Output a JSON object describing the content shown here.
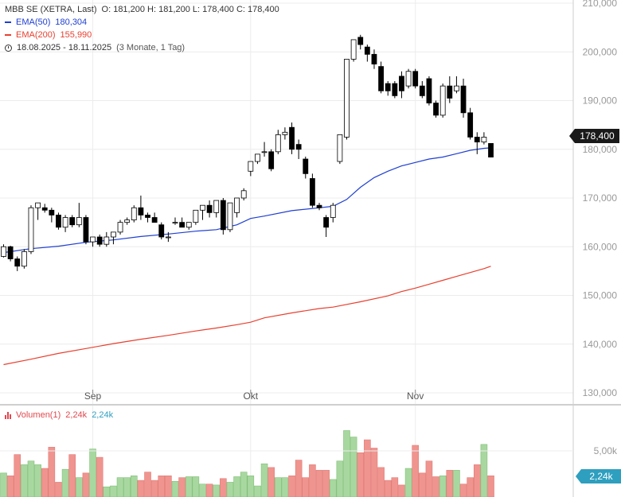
{
  "header": {
    "instrument": "MBB SE (XETRA, Last)",
    "ohlc": "O: 181,200  H: 181,200  L: 178,400  C: 178,400",
    "ema50_label": "EMA(50)",
    "ema50_value": "180,304",
    "ema200_label": "EMA(200)",
    "ema200_value": "155,990",
    "range": "18.08.2025 - 18.11.2025",
    "range_note": "(3 Monate, 1 Tag)"
  },
  "volume_header": {
    "label": "Volumen(1)",
    "value_red": "2,24k",
    "value_blue": "2,24k"
  },
  "price_tag": "178,400",
  "volume_tag": "2,24k",
  "colors": {
    "ema50": "#1f3fd1",
    "ema200": "#e8402f",
    "up_volume": "#a8d8a0",
    "down_volume": "#f0948f",
    "up_candle": "#ffffff",
    "down_candle": "#000000",
    "volume_accent": "#2e9fbf"
  },
  "chart_data": {
    "type": "candlestick",
    "y_axis": {
      "min": 130000,
      "max": 210000,
      "ticks": [
        "130,000",
        "140,000",
        "150,000",
        "160,000",
        "170,000",
        "180,000",
        "190,000",
        "200,000",
        "210,000"
      ]
    },
    "x_axis": {
      "ticks": [
        {
          "label": "Sep",
          "index": 13
        },
        {
          "label": "Okt",
          "index": 36
        },
        {
          "label": "Nov",
          "index": 60
        }
      ]
    },
    "candles": [
      [
        158.0,
        160.5,
        157.8,
        160.0
      ],
      [
        160.0,
        160.2,
        157.0,
        157.5
      ],
      [
        157.5,
        158.0,
        155.0,
        156.0
      ],
      [
        156.0,
        159.5,
        155.5,
        159.0
      ],
      [
        159.0,
        168.5,
        158.5,
        168.0
      ],
      [
        168.0,
        169.0,
        165.5,
        169.0
      ],
      [
        168.0,
        168.8,
        167.0,
        167.5
      ],
      [
        167.5,
        168.0,
        165.0,
        166.5
      ],
      [
        166.5,
        167.0,
        163.5,
        164.0
      ],
      [
        164.0,
        166.5,
        163.0,
        166.0
      ],
      [
        166.0,
        166.5,
        164.0,
        164.5
      ],
      [
        164.5,
        169.0,
        164.0,
        166.0
      ],
      [
        166.0,
        166.5,
        160.5,
        161.0
      ],
      [
        161.0,
        162.0,
        160.0,
        162.0
      ],
      [
        162.0,
        162.5,
        160.0,
        160.5
      ],
      [
        160.5,
        163.0,
        160.0,
        162.0
      ],
      [
        162.0,
        163.0,
        160.5,
        163.0
      ],
      [
        163.0,
        165.5,
        162.5,
        165.0
      ],
      [
        165.0,
        166.0,
        164.5,
        165.5
      ],
      [
        165.5,
        168.5,
        165.0,
        168.0
      ],
      [
        168.0,
        170.5,
        165.5,
        166.5
      ],
      [
        166.5,
        167.0,
        165.0,
        166.0
      ],
      [
        166.0,
        167.0,
        165.0,
        165.0
      ],
      [
        164.5,
        165.0,
        161.5,
        162.0
      ],
      [
        162.0,
        163.0,
        161.0,
        162.0
      ],
      [
        165.0,
        166.0,
        164.5,
        165.0
      ],
      [
        165.0,
        166.0,
        164.0,
        164.0
      ],
      [
        164.0,
        165.0,
        163.5,
        165.0
      ],
      [
        165.0,
        167.5,
        164.5,
        167.5
      ],
      [
        167.5,
        168.5,
        165.5,
        168.5
      ],
      [
        168.5,
        169.5,
        166.0,
        167.0
      ],
      [
        167.0,
        169.5,
        166.0,
        169.5
      ],
      [
        169.5,
        170.0,
        162.5,
        163.5
      ],
      [
        163.5,
        169.0,
        163.0,
        169.0
      ],
      [
        167.0,
        170.0,
        166.0,
        170.0
      ],
      [
        170.0,
        172.0,
        169.5,
        171.5
      ],
      [
        175.5,
        177.0,
        174.5,
        177.5
      ],
      [
        177.5,
        179.0,
        177.0,
        179.0
      ],
      [
        179.5,
        181.5,
        178.5,
        179.5
      ],
      [
        179.5,
        180.0,
        175.5,
        176.0
      ],
      [
        179.5,
        184.0,
        179.0,
        183.0
      ],
      [
        183.0,
        184.5,
        182.0,
        183.5
      ],
      [
        184.5,
        185.5,
        179.0,
        180.0
      ],
      [
        181.0,
        182.0,
        178.0,
        180.0
      ],
      [
        178.0,
        178.5,
        174.0,
        175.0
      ],
      [
        174.0,
        175.0,
        168.0,
        168.5
      ],
      [
        168.5,
        169.0,
        167.5,
        168.0
      ],
      [
        166.0,
        166.5,
        162.0,
        164.0
      ],
      [
        166.0,
        169.0,
        165.0,
        168.5
      ],
      [
        177.5,
        183.0,
        177.0,
        183.0
      ],
      [
        182.5,
        198.5,
        182.0,
        198.5
      ],
      [
        198.5,
        202.5,
        198.0,
        202.5
      ],
      [
        203.0,
        203.5,
        200.5,
        201.5
      ],
      [
        201.0,
        201.5,
        198.0,
        199.5
      ],
      [
        199.5,
        200.5,
        196.5,
        197.5
      ],
      [
        197.0,
        198.0,
        191.5,
        192.0
      ],
      [
        193.5,
        194.0,
        191.0,
        192.0
      ],
      [
        193.5,
        194.0,
        190.5,
        191.0
      ],
      [
        195.0,
        196.0,
        190.5,
        192.0
      ],
      [
        193.0,
        196.5,
        192.5,
        196.0
      ],
      [
        196.0,
        196.5,
        192.5,
        193.0
      ],
      [
        193.0,
        194.0,
        190.5,
        191.0
      ],
      [
        194.5,
        195.0,
        189.0,
        189.5
      ],
      [
        189.5,
        190.0,
        186.5,
        187.0
      ],
      [
        187.0,
        193.5,
        186.5,
        193.0
      ],
      [
        193.0,
        195.0,
        189.5,
        190.5
      ],
      [
        192.0,
        195.0,
        191.5,
        193.0
      ],
      [
        193.0,
        194.5,
        186.5,
        187.5
      ],
      [
        187.5,
        188.5,
        182.0,
        182.5
      ],
      [
        182.5,
        183.5,
        179.0,
        181.5
      ],
      [
        181.5,
        183.5,
        181.0,
        182.5
      ],
      [
        181.2,
        181.2,
        178.4,
        178.4
      ]
    ],
    "ema50": [
      [
        0,
        158.8
      ],
      [
        4,
        159.6
      ],
      [
        8,
        160.1
      ],
      [
        12,
        160.9
      ],
      [
        16,
        161.4
      ],
      [
        20,
        162.1
      ],
      [
        24,
        162.6
      ],
      [
        28,
        163.2
      ],
      [
        31,
        163.5
      ],
      [
        34,
        164.5
      ],
      [
        36,
        165.8
      ],
      [
        38,
        166.3
      ],
      [
        42,
        167.4
      ],
      [
        46,
        168.0
      ],
      [
        48,
        168.3
      ],
      [
        50,
        169.7
      ],
      [
        52,
        172.2
      ],
      [
        54,
        174.2
      ],
      [
        56,
        175.5
      ],
      [
        58,
        176.6
      ],
      [
        60,
        177.3
      ],
      [
        62,
        178.0
      ],
      [
        64,
        178.4
      ],
      [
        66,
        179.1
      ],
      [
        68,
        179.8
      ],
      [
        70,
        180.2
      ],
      [
        71,
        180.3
      ]
    ],
    "ema200": [
      [
        0,
        135.8
      ],
      [
        4,
        136.9
      ],
      [
        8,
        138.1
      ],
      [
        12,
        139.1
      ],
      [
        16,
        140.1
      ],
      [
        20,
        141.0
      ],
      [
        24,
        141.8
      ],
      [
        28,
        142.7
      ],
      [
        31,
        143.3
      ],
      [
        34,
        144.0
      ],
      [
        36,
        144.5
      ],
      [
        38,
        145.4
      ],
      [
        42,
        146.4
      ],
      [
        46,
        147.3
      ],
      [
        48,
        147.6
      ],
      [
        52,
        148.7
      ],
      [
        56,
        149.9
      ],
      [
        58,
        150.8
      ],
      [
        60,
        151.5
      ],
      [
        62,
        152.3
      ],
      [
        64,
        153.1
      ],
      [
        66,
        153.9
      ],
      [
        68,
        154.7
      ],
      [
        70,
        155.5
      ],
      [
        71,
        155.99
      ]
    ],
    "volume": {
      "axis_tick": "5,00k",
      "tick_value": 5.0,
      "values": [
        2.6,
        2.3,
        4.6,
        3.5,
        3.9,
        3.5,
        3.1,
        5.4,
        1.6,
        3.0,
        4.6,
        2.1,
        2.6,
        5.2,
        4.3,
        1.1,
        1.2,
        2.1,
        2.1,
        2.3,
        1.8,
        2.7,
        1.8,
        2.3,
        2.3,
        1.7,
        2.1,
        2.2,
        2.2,
        1.4,
        1.4,
        1.3,
        2.0,
        1.6,
        2.2,
        2.7,
        2.3,
        1.2,
        3.6,
        3.2,
        2.1,
        2.1,
        2.3,
        4.0,
        2.1,
        3.5,
        2.9,
        2.9,
        1.9,
        3.9,
        7.2,
        6.5,
        4.8,
        6.2,
        5.3,
        3.2,
        1.8,
        2.1,
        1.3,
        3.1,
        5.6,
        2.6,
        3.9,
        2.2,
        2.3,
        2.9,
        2.9,
        1.4,
        2.1,
        3.5,
        5.7,
        2.3
      ],
      "up": [
        1,
        0,
        0,
        1,
        1,
        1,
        0,
        0,
        0,
        1,
        0,
        1,
        0,
        1,
        0,
        1,
        1,
        1,
        1,
        1,
        0,
        0,
        0,
        0,
        0,
        1,
        0,
        1,
        1,
        1,
        0,
        1,
        0,
        1,
        1,
        1,
        1,
        1,
        1,
        0,
        1,
        1,
        0,
        0,
        0,
        0,
        0,
        0,
        1,
        1,
        1,
        1,
        0,
        0,
        0,
        0,
        0,
        0,
        0,
        1,
        0,
        0,
        0,
        0,
        1,
        0,
        1,
        0,
        0,
        0,
        1,
        0
      ]
    }
  }
}
